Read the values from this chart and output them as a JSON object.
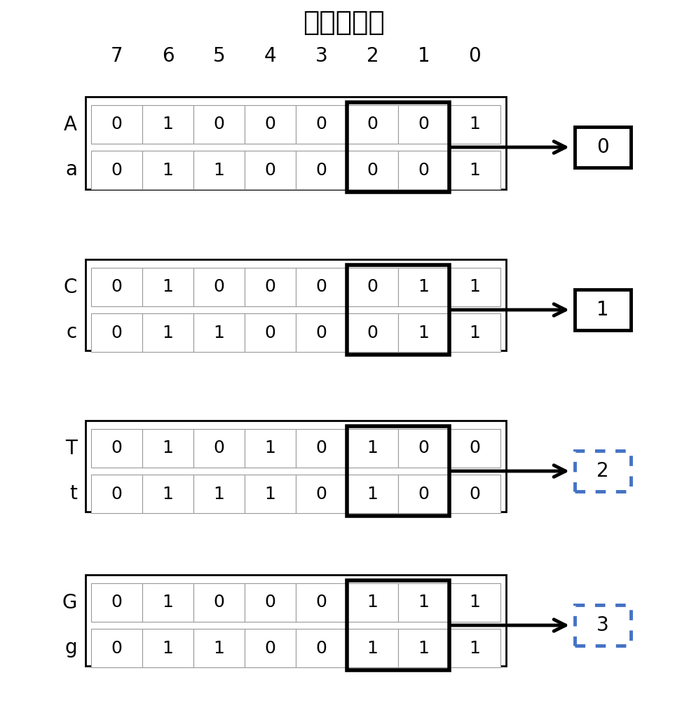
{
  "title": "二进制编码",
  "col_labels": [
    "7",
    "6",
    "5",
    "4",
    "3",
    "2",
    "1",
    "0"
  ],
  "groups": [
    {
      "rows": [
        {
          "label": "A",
          "bits": [
            0,
            1,
            0,
            0,
            0,
            0,
            0,
            1
          ]
        },
        {
          "label": "a",
          "bits": [
            0,
            1,
            1,
            0,
            0,
            0,
            0,
            1
          ]
        }
      ],
      "highlight_cols": [
        2,
        1
      ],
      "result": "0",
      "result_border_color": "#000000",
      "result_border_style": "solid"
    },
    {
      "rows": [
        {
          "label": "C",
          "bits": [
            0,
            1,
            0,
            0,
            0,
            0,
            1,
            1
          ]
        },
        {
          "label": "c",
          "bits": [
            0,
            1,
            1,
            0,
            0,
            0,
            1,
            1
          ]
        }
      ],
      "highlight_cols": [
        2,
        1
      ],
      "result": "1",
      "result_border_color": "#000000",
      "result_border_style": "solid"
    },
    {
      "rows": [
        {
          "label": "T",
          "bits": [
            0,
            1,
            0,
            1,
            0,
            1,
            0,
            0
          ]
        },
        {
          "label": "t",
          "bits": [
            0,
            1,
            1,
            1,
            0,
            1,
            0,
            0
          ]
        }
      ],
      "highlight_cols": [
        2,
        1
      ],
      "result": "2",
      "result_border_color": "#4472c4",
      "result_border_style": "dashed"
    },
    {
      "rows": [
        {
          "label": "G",
          "bits": [
            0,
            1,
            0,
            0,
            0,
            1,
            1,
            1
          ]
        },
        {
          "label": "g",
          "bits": [
            0,
            1,
            1,
            0,
            0,
            1,
            1,
            1
          ]
        }
      ],
      "highlight_cols": [
        2,
        1
      ],
      "result": "3",
      "result_border_color": "#4472c4",
      "result_border_style": "dashed"
    }
  ],
  "bg_color": "#ffffff",
  "label_fontsize": 20,
  "title_fontsize": 28,
  "col_label_fontsize": 20,
  "bit_fontsize": 18,
  "result_fontsize": 20
}
